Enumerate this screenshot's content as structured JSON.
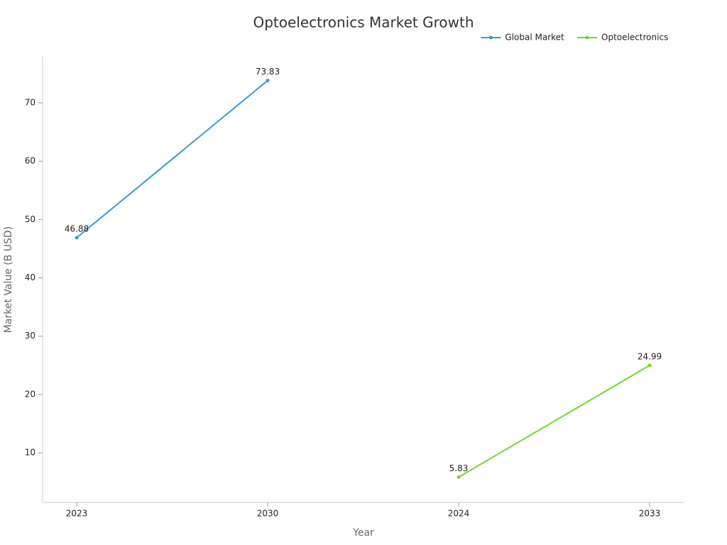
{
  "chart_data": {
    "type": "line",
    "title": "Optoelectronics Market Growth",
    "x_label": "Year",
    "y_label": "Market Value (B USD)",
    "categories": [
      "2023",
      "2030",
      "2024",
      "2033"
    ],
    "series": [
      {
        "name": "Global Market",
        "color": "#3b97dc",
        "values": [
          46.88,
          73.83,
          null,
          null
        ]
      },
      {
        "name": "Optoelectronics",
        "color": "#6fd63a",
        "values": [
          null,
          null,
          5.83,
          24.99
        ]
      }
    ],
    "ylim": [
      1.5,
      77.9
    ],
    "yticks": [
      10,
      20,
      30,
      40,
      50,
      60,
      70
    ],
    "grid": false,
    "legend": "top-right"
  }
}
